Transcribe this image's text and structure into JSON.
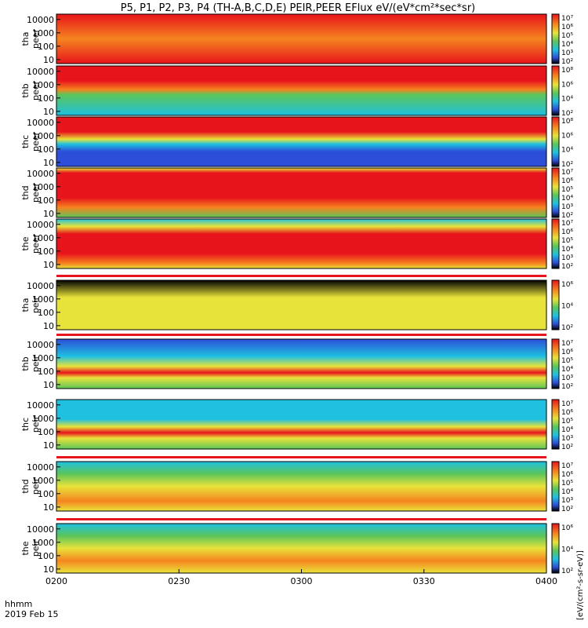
{
  "title": "P5, P1, P2, P3, P4 (TH-A,B,C,D,E) PEIR,PEER EFlux eV/(eV*cm²*sec*sr)",
  "footer": {
    "time_label": "hhmm",
    "date_label": "2019 Feb 15",
    "colorbar_unit": "[eV/(cm²-s-sr-eV)]"
  },
  "colors": {
    "red": "#e8141c",
    "orange": "#f5841f",
    "yellow": "#e8e33a",
    "green": "#5cc55a",
    "cyan": "#1fc0e0",
    "blue": "#2c4ed8",
    "black": "#000000"
  },
  "chart_data": {
    "type": "heatmap",
    "x_axis": {
      "ticks": [
        "0200",
        "0230",
        "0300",
        "0330",
        "0400"
      ],
      "range": [
        "02:00",
        "04:00"
      ]
    },
    "y_axis": {
      "scale": "log",
      "range": [
        5,
        25000
      ],
      "ticks": [
        "10",
        "100",
        "1000",
        "10000"
      ]
    },
    "panels": [
      {
        "probe": "tha",
        "species": "peer",
        "ylabel": [
          "tha",
          "peer"
        ],
        "cbar": [
          "10⁷",
          "10⁶",
          "10⁵",
          "10⁴",
          "10³",
          "10²"
        ],
        "profile": [
          [
            0,
            "red"
          ],
          [
            0.5,
            "orange"
          ],
          [
            1,
            "red"
          ]
        ]
      },
      {
        "probe": "thb",
        "species": "peer",
        "ylabel": [
          "thb",
          "peer"
        ],
        "cbar": [
          "10⁸",
          "10⁶",
          "10⁴",
          "10²"
        ],
        "profile": [
          [
            0,
            "red"
          ],
          [
            0.3,
            "red"
          ],
          [
            0.48,
            "orange"
          ],
          [
            0.58,
            "green"
          ],
          [
            1,
            "cyan"
          ]
        ]
      },
      {
        "probe": "thc",
        "species": "peer",
        "ylabel": [
          "thc",
          "peer"
        ],
        "cbar": [
          "10⁸",
          "10⁶",
          "10⁴",
          "10²"
        ],
        "profile": [
          [
            0,
            "red"
          ],
          [
            0.3,
            "red"
          ],
          [
            0.45,
            "yellow"
          ],
          [
            0.55,
            "cyan"
          ],
          [
            0.7,
            "blue"
          ],
          [
            1,
            "blue"
          ]
        ]
      },
      {
        "probe": "thd",
        "species": "peer",
        "ylabel": [
          "thd",
          "peer"
        ],
        "cbar": [
          "10⁷",
          "10⁶",
          "10⁵",
          "10⁴",
          "10³",
          "10²"
        ],
        "profile": [
          [
            0,
            "yellow"
          ],
          [
            0.1,
            "red"
          ],
          [
            0.6,
            "red"
          ],
          [
            0.8,
            "orange"
          ],
          [
            1,
            "green"
          ]
        ]
      },
      {
        "probe": "the",
        "species": "peer",
        "ylabel": [
          "the",
          "peer"
        ],
        "cbar": [
          "10⁷",
          "10⁶",
          "10⁵",
          "10⁴",
          "10³",
          "10²"
        ],
        "profile": [
          [
            0,
            "cyan"
          ],
          [
            0.15,
            "yellow"
          ],
          [
            0.3,
            "red"
          ],
          [
            0.7,
            "red"
          ],
          [
            0.9,
            "orange"
          ],
          [
            1,
            "yellow"
          ]
        ]
      },
      {
        "probe": "tha",
        "species": "peir",
        "ylabel": [
          "tha",
          "peir"
        ],
        "cbar": [
          "10⁶",
          "10⁴",
          "10²"
        ],
        "profile": [
          [
            0,
            "black"
          ],
          [
            0.35,
            "yellow"
          ],
          [
            0.7,
            "yellow"
          ],
          [
            1,
            "yellow"
          ]
        ]
      },
      {
        "probe": "thb",
        "species": "peir",
        "ylabel": [
          "thb",
          "peir"
        ],
        "cbar": [
          "10⁷",
          "10⁶",
          "10⁵",
          "10⁴",
          "10³",
          "10²"
        ],
        "profile": [
          [
            0,
            "blue"
          ],
          [
            0.35,
            "cyan"
          ],
          [
            0.55,
            "yellow"
          ],
          [
            0.68,
            "red"
          ],
          [
            0.78,
            "yellow"
          ],
          [
            1,
            "green"
          ]
        ]
      },
      {
        "probe": "thc",
        "species": "peir",
        "ylabel": [
          "thc",
          "peir"
        ],
        "cbar": [
          "10⁷",
          "10⁶",
          "10⁵",
          "10⁴",
          "10³",
          "10²"
        ],
        "profile": [
          [
            0,
            "cyan"
          ],
          [
            0.4,
            "cyan"
          ],
          [
            0.55,
            "yellow"
          ],
          [
            0.67,
            "red"
          ],
          [
            0.78,
            "yellow"
          ],
          [
            1,
            "green"
          ]
        ]
      },
      {
        "probe": "thd",
        "species": "peir",
        "ylabel": [
          "thd",
          "peir"
        ],
        "cbar": [
          "10⁷",
          "10⁶",
          "10⁵",
          "10⁴",
          "10³",
          "10²"
        ],
        "profile": [
          [
            0,
            "cyan"
          ],
          [
            0.25,
            "green"
          ],
          [
            0.5,
            "yellow"
          ],
          [
            0.8,
            "orange"
          ],
          [
            1,
            "yellow"
          ]
        ]
      },
      {
        "probe": "the",
        "species": "peir",
        "ylabel": [
          "the",
          "peir"
        ],
        "cbar": [
          "10⁶",
          "10⁴",
          "10²"
        ],
        "profile": [
          [
            0,
            "cyan"
          ],
          [
            0.25,
            "green"
          ],
          [
            0.5,
            "yellow"
          ],
          [
            0.75,
            "orange"
          ],
          [
            1,
            "yellow"
          ]
        ]
      }
    ]
  }
}
